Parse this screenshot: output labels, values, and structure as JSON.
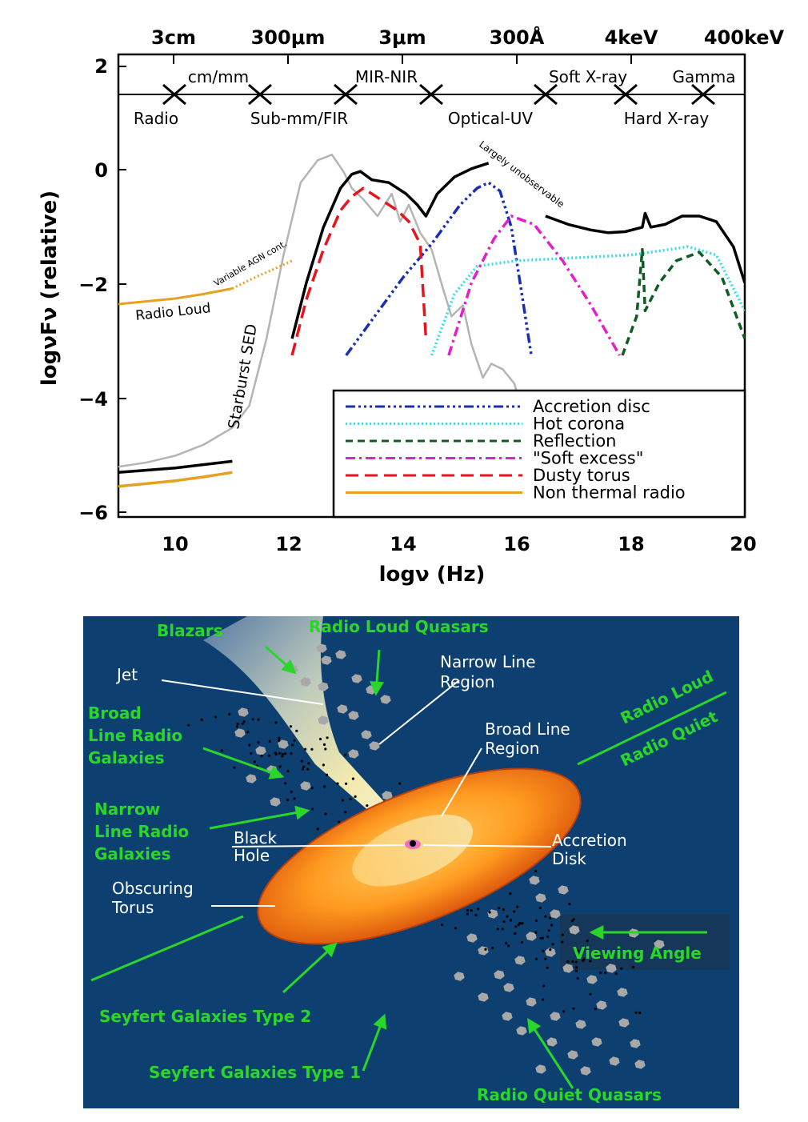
{
  "top_axis": {
    "labels": [
      "3cm",
      "300μm",
      "3μm",
      "300Å",
      "4keV",
      "400keV"
    ],
    "bands_above": [
      "cm/mm",
      "MIR-NIR",
      "Soft X-ray",
      "Gamma"
    ],
    "bands_below": [
      "Radio",
      "Sub-mm/FIR",
      "Optical-UV",
      "Hard X-ray"
    ]
  },
  "annotations": {
    "largely_unobservable": "Largely unobservable",
    "variable_agn": "Variable AGN cont.",
    "radio_loud": "Radio Loud",
    "starburst_sed": "Starburst SED"
  },
  "chart_data": {
    "type": "line",
    "xlabel": "logν (Hz)",
    "ylabel": "logνFν (relative)",
    "xlim": [
      9,
      20
    ],
    "ylim": [
      -6.2,
      2.1
    ],
    "xticks": [
      "10",
      "12",
      "14",
      "16",
      "18",
      "20"
    ],
    "yticks": [
      "2",
      "0",
      "−2",
      "−4",
      "−6"
    ],
    "legend_position": "bottom-right",
    "series": [
      {
        "name": "Accretion disc",
        "color": "#1a2fb0",
        "dash": "dashdotdotdot",
        "x": [
          13,
          13.5,
          14,
          14.5,
          15,
          15.3,
          15.5,
          15.7,
          15.9,
          16.1,
          16.25
        ],
        "y": [
          -3.3,
          -2.6,
          -1.9,
          -1.3,
          -0.6,
          -0.3,
          -0.2,
          -0.35,
          -1.0,
          -2.3,
          -3.3
        ]
      },
      {
        "name": "Hot corona",
        "color": "#38dde8",
        "dash": "dotted",
        "x": [
          14.5,
          14.9,
          15.3,
          16,
          17,
          18,
          19,
          19.5,
          20
        ],
        "y": [
          -3.3,
          -2.2,
          -1.7,
          -1.6,
          -1.55,
          -1.5,
          -1.35,
          -1.5,
          -2.5
        ]
      },
      {
        "name": "Reflection",
        "color": "#0d5c22",
        "dash": "dashed",
        "x": [
          17.85,
          18.1,
          18.2,
          18.25,
          18.5,
          18.8,
          19.2,
          19.6,
          20
        ],
        "y": [
          -3.3,
          -2.6,
          -1.4,
          -2.5,
          -2.0,
          -1.6,
          -1.45,
          -1.9,
          -3.0
        ]
      },
      {
        "name": "\"Soft excess\"",
        "color": "#e020c8",
        "dash": "dashdot",
        "x": [
          14.8,
          15.2,
          15.6,
          15.9,
          16.3,
          16.8,
          17.3,
          17.8
        ],
        "y": [
          -3.3,
          -2.0,
          -1.2,
          -0.8,
          -0.95,
          -1.6,
          -2.4,
          -3.3
        ]
      },
      {
        "name": "Dusty torus",
        "color": "#e8141c",
        "dash": "longdash",
        "x": [
          12.05,
          12.3,
          12.6,
          12.9,
          13.1,
          13.3,
          13.6,
          13.9,
          14.1,
          14.3,
          14.4
        ],
        "y": [
          -3.3,
          -2.3,
          -1.4,
          -0.7,
          -0.45,
          -0.3,
          -0.5,
          -0.7,
          -0.9,
          -1.3,
          -3.0
        ]
      },
      {
        "name": "Non thermal radio",
        "color": "#e8a020",
        "dash": "solid",
        "x": [
          9,
          9.5,
          10,
          10.5,
          11
        ],
        "y": [
          -5.65,
          -5.6,
          -5.55,
          -5.48,
          -5.4
        ]
      }
    ],
    "extra_curves": [
      {
        "id": "starburst",
        "color": "#b4b4b4",
        "x": [
          9,
          9.5,
          10,
          10.5,
          11,
          11.3,
          11.6,
          11.9,
          12.2,
          12.5,
          12.75,
          12.95,
          13.1,
          13.3,
          13.55,
          13.8,
          13.95,
          14.1,
          14.3,
          14.5,
          14.7,
          14.85,
          15.05,
          15.2,
          15.4,
          15.55,
          15.75,
          15.95,
          16.1,
          16.2
        ],
        "y": [
          -5.3,
          -5.22,
          -5.1,
          -4.9,
          -4.6,
          -4.2,
          -3.0,
          -1.5,
          -0.2,
          0.2,
          0.3,
          0.0,
          -0.3,
          -0.5,
          -0.8,
          -0.4,
          -0.9,
          -0.6,
          -1.1,
          -1.4,
          -2.1,
          -2.6,
          -2.4,
          -3.1,
          -3.7,
          -3.45,
          -3.55,
          -3.8,
          -4.3,
          -4.0
        ]
      },
      {
        "id": "total_ir",
        "color": "#000000",
        "x": [
          12.05,
          12.3,
          12.6,
          12.9,
          13.1,
          13.25,
          13.45,
          13.75,
          14.05,
          14.25,
          14.4,
          14.6,
          14.9,
          15.2,
          15.5
        ],
        "y": [
          -3.0,
          -2.0,
          -1.0,
          -0.3,
          -0.05,
          0.0,
          -0.15,
          -0.2,
          -0.4,
          -0.6,
          -0.8,
          -0.4,
          -0.1,
          0.05,
          0.15
        ]
      },
      {
        "id": "total_x",
        "color": "#000000",
        "x": [
          16.5,
          16.9,
          17.3,
          17.6,
          17.9,
          18.2,
          18.25,
          18.35,
          18.6,
          18.9,
          19.2,
          19.5,
          19.8,
          20
        ],
        "y": [
          -0.8,
          -0.95,
          -1.05,
          -1.1,
          -1.08,
          -1.0,
          -0.75,
          -1.0,
          -0.95,
          -0.8,
          -0.8,
          -0.9,
          -1.35,
          -2.0
        ]
      },
      {
        "id": "total_radio",
        "color": "#000000",
        "x": [
          9,
          10,
          11
        ],
        "y": [
          -5.4,
          -5.32,
          -5.2
        ]
      },
      {
        "id": "radio_loud",
        "color": "#e8a020",
        "x": [
          9,
          9.5,
          10,
          10.5,
          11
        ],
        "y": [
          -2.38,
          -2.33,
          -2.28,
          -2.2,
          -2.1
        ]
      },
      {
        "id": "variable_agn",
        "color": "#e8a020",
        "x": [
          11,
          11.4,
          11.8,
          12.05
        ],
        "y": [
          -2.1,
          -1.9,
          -1.72,
          -1.6
        ]
      }
    ]
  },
  "diagram": {
    "labels": {
      "blazars": "Blazars",
      "radio_loud_quasars": "Radio Loud Quasars",
      "jet": "Jet",
      "narrow_line_region_1": "Narrow Line",
      "narrow_line_region_2": "Region",
      "broad_line_radio_galaxies_1": "Broad",
      "broad_line_radio_galaxies_2": "Line Radio",
      "broad_line_radio_galaxies_3": "Galaxies",
      "broad_line_region_1": "Broad Line",
      "broad_line_region_2": "Region",
      "radio_loud": "Radio Loud",
      "radio_quiet": "Radio Quiet",
      "narrow_line_radio_galaxies_1": "Narrow",
      "narrow_line_radio_galaxies_2": "Line Radio",
      "narrow_line_radio_galaxies_3": "Galaxies",
      "black_hole_1": "Black",
      "black_hole_2": "Hole",
      "accretion_disk_1": "Accretion",
      "accretion_disk_2": "Disk",
      "obscuring_torus_1": "Obscuring",
      "obscuring_torus_2": "Torus",
      "viewing_angle": "Viewing Angle",
      "seyfert_type_2": "Seyfert Galaxies Type 2",
      "seyfert_type_1": "Seyfert Galaxies Type 1",
      "radio_quiet_quasars": "Radio Quiet Quasars"
    },
    "colors": {
      "background": "#0d3f70",
      "green_label": "#29d629",
      "white_label": "#ffffff",
      "torus_outer": "#e85a10",
      "torus_inner": "#ffb020",
      "cloud": "#a8a8a8"
    }
  }
}
